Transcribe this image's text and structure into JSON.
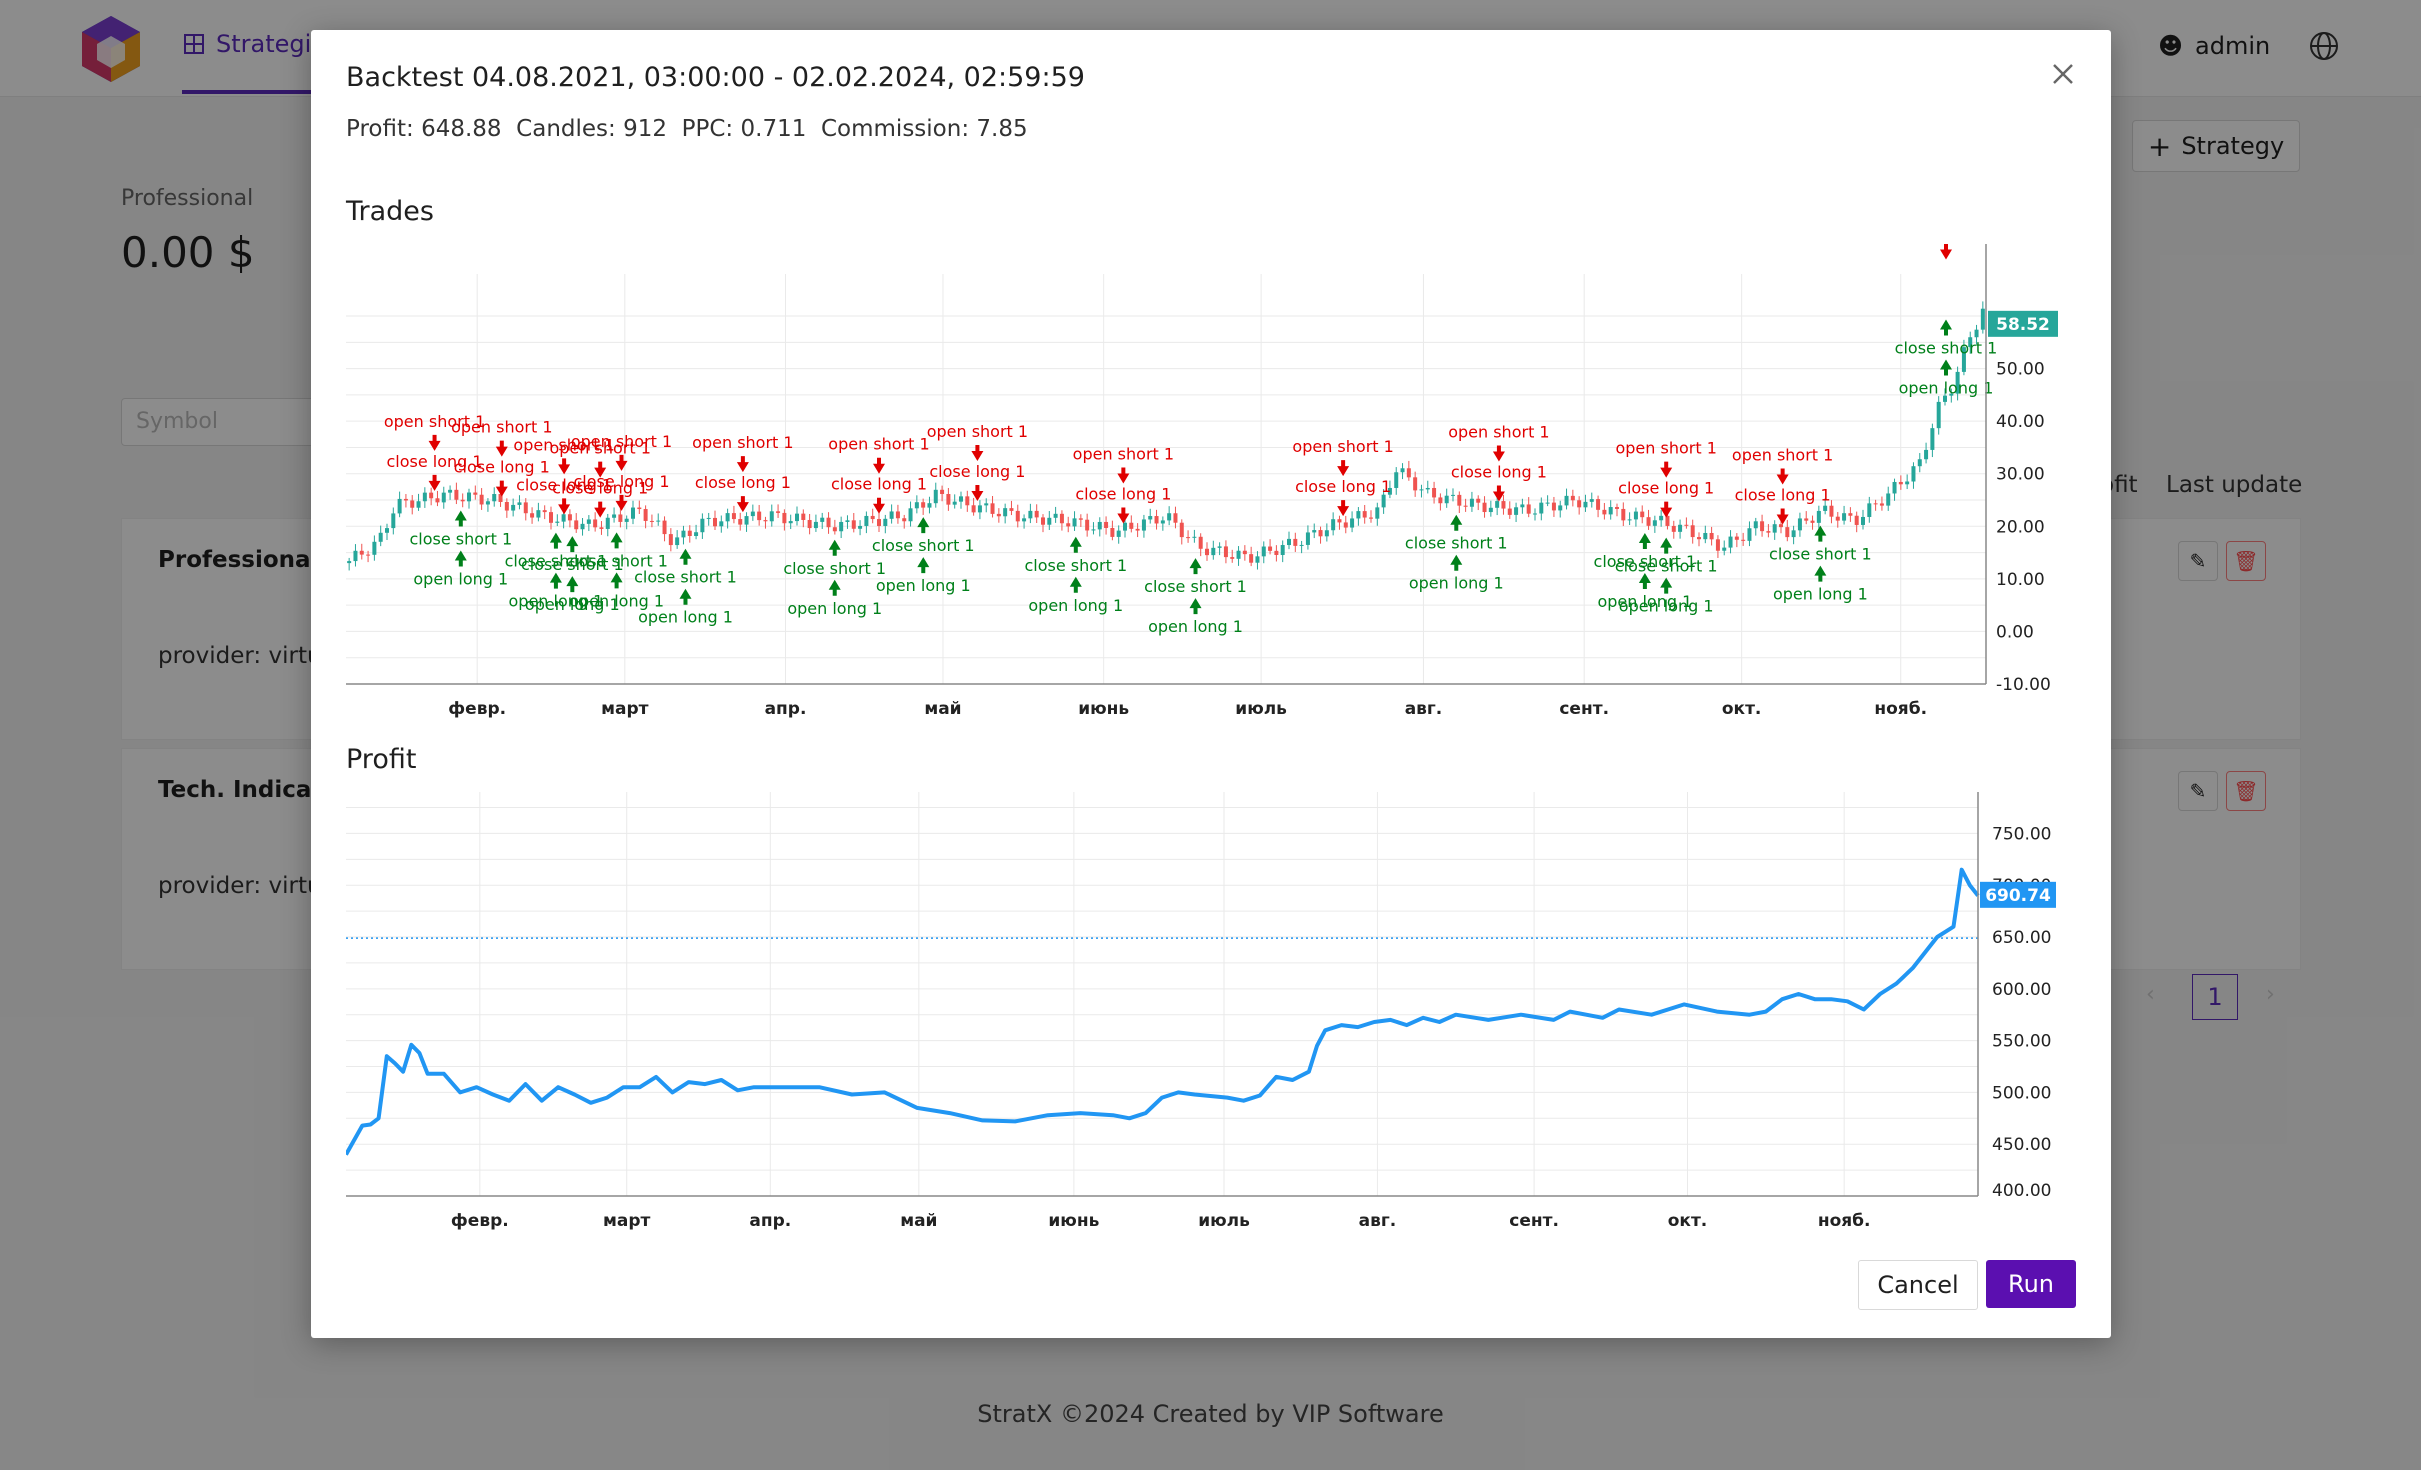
{
  "app": {
    "nav_item": "Strategies",
    "user": "admin",
    "footer": "StratX ©2024 Created by VIP Software"
  },
  "page": {
    "add_strategy": "Strategy",
    "plan_label": "Professional",
    "balance": "0.00 $",
    "symbol_placeholder": "Symbol",
    "columns": [
      "ofit",
      "Last update"
    ],
    "cards": [
      {
        "title": "Professional B",
        "subtitle": "provider: virtua"
      },
      {
        "title": "Tech. Indicator",
        "subtitle": "provider: virtua"
      }
    ],
    "pagination": {
      "current": "1"
    }
  },
  "modal": {
    "title": "Backtest 04.08.2021, 03:00:00 - 02.02.2024, 02:59:59",
    "stats": {
      "profit": "648.88",
      "candles": "912",
      "ppc": "0.711",
      "commission": "7.85"
    },
    "labels": {
      "profit": "Profit:",
      "candles": "Candles:",
      "ppc": "PPC:",
      "commission": "Commission:"
    },
    "trades_title": "Trades",
    "profit_title": "Profit",
    "cancel": "Cancel",
    "run": "Run"
  },
  "colors": {
    "accent": "#5b2bbd",
    "run": "#5b0fb0",
    "up": "#26a69a",
    "down": "#ef5350",
    "profit_line": "#2196f3",
    "short_label": "#e00000",
    "long_label": "#00801a"
  },
  "chart_data": [
    {
      "type": "candlestick",
      "title": "Trades",
      "months": [
        "февр.",
        "март",
        "апр.",
        "май",
        "июнь",
        "июль",
        "авг.",
        "сент.",
        "окт.",
        "нояб."
      ],
      "y_ticks": [
        "50.00",
        "40.00",
        "30.00",
        "20.00",
        "10.00",
        "0.00",
        "-10.00"
      ],
      "ylim": [
        -10,
        68
      ],
      "last_price": "58.52",
      "price_path": [
        [
          0,
          13
        ],
        [
          0.02,
          17
        ],
        [
          0.03,
          24
        ],
        [
          0.06,
          26
        ],
        [
          0.09,
          25
        ],
        [
          0.12,
          22
        ],
        [
          0.15,
          20
        ],
        [
          0.18,
          23
        ],
        [
          0.2,
          17
        ],
        [
          0.22,
          21
        ],
        [
          0.26,
          22
        ],
        [
          0.3,
          20
        ],
        [
          0.34,
          22
        ],
        [
          0.36,
          26
        ],
        [
          0.38,
          24
        ],
        [
          0.41,
          22
        ],
        [
          0.44,
          21
        ],
        [
          0.47,
          19
        ],
        [
          0.5,
          22
        ],
        [
          0.52,
          16
        ],
        [
          0.55,
          14
        ],
        [
          0.58,
          17
        ],
        [
          0.6,
          20
        ],
        [
          0.63,
          23
        ],
        [
          0.64,
          31
        ],
        [
          0.66,
          26
        ],
        [
          0.69,
          24
        ],
        [
          0.72,
          23
        ],
        [
          0.75,
          25
        ],
        [
          0.78,
          22
        ],
        [
          0.8,
          21
        ],
        [
          0.82,
          19
        ],
        [
          0.84,
          16
        ],
        [
          0.86,
          20
        ],
        [
          0.88,
          19
        ],
        [
          0.9,
          23
        ],
        [
          0.92,
          21
        ],
        [
          0.94,
          26
        ],
        [
          0.96,
          32
        ],
        [
          0.97,
          42
        ],
        [
          0.98,
          47
        ],
        [
          0.99,
          56
        ],
        [
          1,
          62
        ]
      ],
      "markers": [
        {
          "t": "open short 1",
          "x": 0.054,
          "dir": "down",
          "lv": 1
        },
        {
          "t": "close long 1",
          "x": 0.054,
          "dir": "down",
          "lv": 2
        },
        {
          "t": "close short 1",
          "x": 0.07,
          "dir": "up",
          "lv": 1
        },
        {
          "t": "open long 1",
          "x": 0.07,
          "dir": "up",
          "lv": 2
        },
        {
          "t": "open short 1",
          "x": 0.095,
          "dir": "down",
          "lv": 1
        },
        {
          "t": "close long 1",
          "x": 0.095,
          "dir": "down",
          "lv": 2
        },
        {
          "t": "close short 1",
          "x": 0.128,
          "dir": "up",
          "lv": 1
        },
        {
          "t": "open long 1",
          "x": 0.128,
          "dir": "up",
          "lv": 2
        },
        {
          "t": "open short 1",
          "x": 0.133,
          "dir": "down",
          "lv": 1
        },
        {
          "t": "close long 1",
          "x": 0.133,
          "dir": "down",
          "lv": 2
        },
        {
          "t": "close short 1",
          "x": 0.138,
          "dir": "up",
          "lv": 1
        },
        {
          "t": "open long 1",
          "x": 0.138,
          "dir": "up",
          "lv": 2
        },
        {
          "t": "open short 1",
          "x": 0.155,
          "dir": "down",
          "lv": 1
        },
        {
          "t": "close long 1",
          "x": 0.155,
          "dir": "down",
          "lv": 2
        },
        {
          "t": "close short 1",
          "x": 0.165,
          "dir": "up",
          "lv": 1
        },
        {
          "t": "open long 1",
          "x": 0.165,
          "dir": "up",
          "lv": 2
        },
        {
          "t": "open short 1",
          "x": 0.168,
          "dir": "down",
          "lv": 1
        },
        {
          "t": "close long 1",
          "x": 0.168,
          "dir": "down",
          "lv": 2
        },
        {
          "t": "close short 1",
          "x": 0.207,
          "dir": "up",
          "lv": 1
        },
        {
          "t": "open long 1",
          "x": 0.207,
          "dir": "up",
          "lv": 2
        },
        {
          "t": "open short 1",
          "x": 0.242,
          "dir": "down",
          "lv": 1
        },
        {
          "t": "close long 1",
          "x": 0.242,
          "dir": "down",
          "lv": 2
        },
        {
          "t": "close short 1",
          "x": 0.298,
          "dir": "up",
          "lv": 1
        },
        {
          "t": "open long 1",
          "x": 0.298,
          "dir": "up",
          "lv": 2
        },
        {
          "t": "open short 1",
          "x": 0.325,
          "dir": "down",
          "lv": 1
        },
        {
          "t": "close long 1",
          "x": 0.325,
          "dir": "down",
          "lv": 2
        },
        {
          "t": "close short 1",
          "x": 0.352,
          "dir": "up",
          "lv": 1
        },
        {
          "t": "open long 1",
          "x": 0.352,
          "dir": "up",
          "lv": 2
        },
        {
          "t": "open short 1",
          "x": 0.385,
          "dir": "down",
          "lv": 1
        },
        {
          "t": "close long 1",
          "x": 0.385,
          "dir": "down",
          "lv": 2
        },
        {
          "t": "close short 1",
          "x": 0.445,
          "dir": "up",
          "lv": 1
        },
        {
          "t": "open long 1",
          "x": 0.445,
          "dir": "up",
          "lv": 2
        },
        {
          "t": "open short 1",
          "x": 0.474,
          "dir": "down",
          "lv": 1
        },
        {
          "t": "close long 1",
          "x": 0.474,
          "dir": "down",
          "lv": 2
        },
        {
          "t": "close short 1",
          "x": 0.518,
          "dir": "up",
          "lv": 1
        },
        {
          "t": "open long 1",
          "x": 0.518,
          "dir": "up",
          "lv": 2
        },
        {
          "t": "open short 1",
          "x": 0.608,
          "dir": "down",
          "lv": 1
        },
        {
          "t": "close long 1",
          "x": 0.608,
          "dir": "down",
          "lv": 2
        },
        {
          "t": "close short 1",
          "x": 0.677,
          "dir": "up",
          "lv": 1
        },
        {
          "t": "open long 1",
          "x": 0.677,
          "dir": "up",
          "lv": 2
        },
        {
          "t": "open short 1",
          "x": 0.703,
          "dir": "down",
          "lv": 1
        },
        {
          "t": "close long 1",
          "x": 0.703,
          "dir": "down",
          "lv": 2
        },
        {
          "t": "open short 1",
          "x": 0.805,
          "dir": "down",
          "lv": 1
        },
        {
          "t": "close long 1",
          "x": 0.805,
          "dir": "down",
          "lv": 2
        },
        {
          "t": "close short 1",
          "x": 0.792,
          "dir": "up",
          "lv": 1
        },
        {
          "t": "open long 1",
          "x": 0.792,
          "dir": "up",
          "lv": 2
        },
        {
          "t": "close short 1",
          "x": 0.805,
          "dir": "up",
          "lv": 1
        },
        {
          "t": "open long 1",
          "x": 0.805,
          "dir": "up",
          "lv": 2
        },
        {
          "t": "open short 1",
          "x": 0.876,
          "dir": "down",
          "lv": 1
        },
        {
          "t": "close long 1",
          "x": 0.876,
          "dir": "down",
          "lv": 2
        },
        {
          "t": "close short 1",
          "x": 0.899,
          "dir": "up",
          "lv": 1
        },
        {
          "t": "open long 1",
          "x": 0.899,
          "dir": "up",
          "lv": 2
        },
        {
          "t": "close short 1",
          "x": 1.0,
          "dir": "up",
          "lv": 1
        },
        {
          "t": "open long 1",
          "x": 1.0,
          "dir": "up",
          "lv": 2
        },
        {
          "t": "close long 1",
          "x": 1.0,
          "dir": "down",
          "lv": 1
        }
      ]
    },
    {
      "type": "line",
      "title": "Profit",
      "months": [
        "февр.",
        "март",
        "апр.",
        "май",
        "июнь",
        "июль",
        "авг.",
        "сент.",
        "окт.",
        "нояб."
      ],
      "y_ticks": [
        "750.00",
        "700.00",
        "650.00",
        "600.00",
        "550.00",
        "500.00",
        "450.00",
        "400.00"
      ],
      "ylim": [
        400,
        790
      ],
      "last_value": "690.74",
      "baseline": 648.88,
      "points": [
        [
          0,
          440
        ],
        [
          0.01,
          468
        ],
        [
          0.015,
          469
        ],
        [
          0.02,
          475
        ],
        [
          0.025,
          535
        ],
        [
          0.03,
          528
        ],
        [
          0.035,
          520
        ],
        [
          0.04,
          546
        ],
        [
          0.045,
          538
        ],
        [
          0.05,
          518
        ],
        [
          0.06,
          518
        ],
        [
          0.07,
          500
        ],
        [
          0.08,
          505
        ],
        [
          0.09,
          498
        ],
        [
          0.1,
          492
        ],
        [
          0.11,
          508
        ],
        [
          0.12,
          492
        ],
        [
          0.13,
          505
        ],
        [
          0.14,
          498
        ],
        [
          0.15,
          490
        ],
        [
          0.16,
          495
        ],
        [
          0.17,
          505
        ],
        [
          0.18,
          505
        ],
        [
          0.19,
          515
        ],
        [
          0.2,
          500
        ],
        [
          0.21,
          510
        ],
        [
          0.22,
          508
        ],
        [
          0.23,
          512
        ],
        [
          0.24,
          502
        ],
        [
          0.25,
          505
        ],
        [
          0.27,
          505
        ],
        [
          0.29,
          505
        ],
        [
          0.31,
          498
        ],
        [
          0.33,
          500
        ],
        [
          0.35,
          485
        ],
        [
          0.37,
          480
        ],
        [
          0.39,
          473
        ],
        [
          0.41,
          472
        ],
        [
          0.43,
          478
        ],
        [
          0.45,
          480
        ],
        [
          0.47,
          478
        ],
        [
          0.48,
          475
        ],
        [
          0.49,
          480
        ],
        [
          0.5,
          495
        ],
        [
          0.51,
          500
        ],
        [
          0.52,
          498
        ],
        [
          0.54,
          495
        ],
        [
          0.55,
          492
        ],
        [
          0.56,
          497
        ],
        [
          0.57,
          515
        ],
        [
          0.58,
          512
        ],
        [
          0.59,
          520
        ],
        [
          0.595,
          545
        ],
        [
          0.6,
          560
        ],
        [
          0.61,
          565
        ],
        [
          0.62,
          563
        ],
        [
          0.63,
          568
        ],
        [
          0.64,
          570
        ],
        [
          0.65,
          565
        ],
        [
          0.66,
          572
        ],
        [
          0.67,
          568
        ],
        [
          0.68,
          575
        ],
        [
          0.7,
          570
        ],
        [
          0.72,
          575
        ],
        [
          0.74,
          570
        ],
        [
          0.75,
          578
        ],
        [
          0.77,
          572
        ],
        [
          0.78,
          580
        ],
        [
          0.8,
          575
        ],
        [
          0.82,
          585
        ],
        [
          0.84,
          578
        ],
        [
          0.86,
          575
        ],
        [
          0.87,
          578
        ],
        [
          0.88,
          590
        ],
        [
          0.89,
          595
        ],
        [
          0.9,
          590
        ],
        [
          0.91,
          590
        ],
        [
          0.92,
          588
        ],
        [
          0.93,
          580
        ],
        [
          0.94,
          595
        ],
        [
          0.95,
          605
        ],
        [
          0.96,
          620
        ],
        [
          0.97,
          640
        ],
        [
          0.975,
          650
        ],
        [
          0.98,
          655
        ],
        [
          0.985,
          660
        ],
        [
          0.99,
          715
        ],
        [
          0.995,
          700
        ],
        [
          1,
          690
        ]
      ]
    }
  ]
}
